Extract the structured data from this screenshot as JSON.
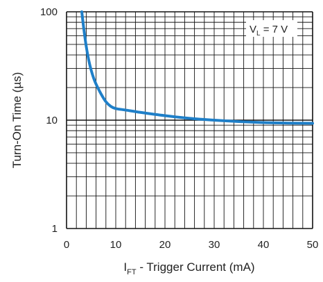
{
  "chart_data": {
    "type": "line",
    "xlabel_main": "I",
    "xlabel_sub": "FT",
    "xlabel_rest": " - Trigger Current (mA)",
    "ylabel": "Turn-On Time (µs)",
    "xlim": [
      0,
      50
    ],
    "ylim": [
      1,
      100
    ],
    "yscale": "log",
    "grid": true,
    "x_ticks": [
      "0",
      "10",
      "20",
      "30",
      "40",
      "50"
    ],
    "y_ticks": [
      "1",
      "10",
      "100"
    ],
    "annotation": {
      "main": "V",
      "sub": "L",
      "rest": " = 7 V"
    },
    "line_color": "#1f7fc8",
    "series": [
      {
        "x": [
          3.1,
          3.5,
          4,
          4.5,
          5,
          5.5,
          6,
          7,
          8,
          9,
          10,
          12,
          15,
          20,
          25,
          30,
          35,
          40,
          45,
          50
        ],
        "values": [
          100,
          70,
          48,
          36,
          29,
          24.5,
          21.5,
          17.5,
          14.8,
          13.4,
          12.8,
          12.4,
          11.8,
          11.0,
          10.4,
          10.0,
          9.7,
          9.5,
          9.4,
          9.35
        ]
      }
    ]
  }
}
